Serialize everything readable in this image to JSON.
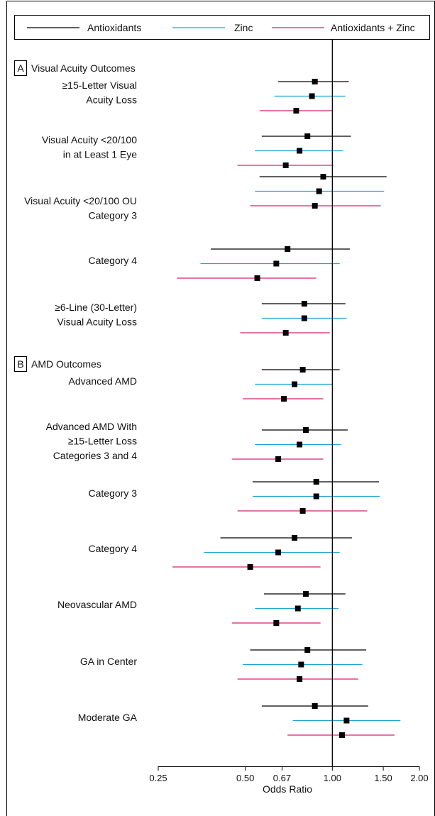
{
  "chart_data": {
    "type": "forest",
    "xlabel": "Odds Ratio",
    "xscale": "log",
    "xlim": [
      0.25,
      2.0
    ],
    "reference_line": 1.0,
    "ticks": [
      {
        "value": 0.25,
        "label": "0.25"
      },
      {
        "value": 0.5,
        "label": "0.50"
      },
      {
        "value": 0.67,
        "label": "0.67"
      },
      {
        "value": 1.0,
        "label": "1.00"
      },
      {
        "value": 1.5,
        "label": "1.50"
      },
      {
        "value": 2.0,
        "label": "2.00"
      }
    ],
    "legend": {
      "placement": "top",
      "items": [
        {
          "name": "Antioxidants",
          "color": "#000000"
        },
        {
          "name": "Zinc",
          "color": "#1fa3d6"
        },
        {
          "name": "Antioxidants + Zinc",
          "color": "#d6226e"
        }
      ]
    },
    "sections": [
      {
        "letter": "A",
        "title": "Visual Acuity Outcomes",
        "outcomes": [
          {
            "label": [
              "≥15-Letter Visual",
              "Acuity Loss"
            ],
            "series": [
              {
                "or": 0.87,
                "lo": 0.65,
                "hi": 1.14
              },
              {
                "or": 0.85,
                "lo": 0.63,
                "hi": 1.11
              },
              {
                "or": 0.75,
                "lo": 0.56,
                "hi": 1.0
              }
            ]
          },
          {
            "label": [
              "Visual Acuity <20/100",
              "in at Least 1 Eye"
            ],
            "series": [
              {
                "or": 0.82,
                "lo": 0.57,
                "hi": 1.16
              },
              {
                "or": 0.77,
                "lo": 0.54,
                "hi": 1.09
              },
              {
                "or": 0.69,
                "lo": 0.47,
                "hi": 1.01
              }
            ]
          },
          {
            "label": [
              "Visual Acuity <20/100 OU",
              "Category 3"
            ],
            "series": [
              {
                "or": 0.93,
                "lo": 0.56,
                "hi": 1.54
              },
              {
                "or": 0.9,
                "lo": 0.54,
                "hi": 1.51
              },
              {
                "or": 0.87,
                "lo": 0.52,
                "hi": 1.47
              }
            ]
          },
          {
            "label": [
              "Category 4"
            ],
            "series": [
              {
                "or": 0.7,
                "lo": 0.38,
                "hi": 1.15
              },
              {
                "or": 0.64,
                "lo": 0.35,
                "hi": 1.06
              },
              {
                "or": 0.55,
                "lo": 0.29,
                "hi": 0.88
              }
            ]
          },
          {
            "label": [
              "≥6-Line (30-Letter)",
              "Visual Acuity Loss"
            ],
            "series": [
              {
                "or": 0.8,
                "lo": 0.57,
                "hi": 1.11
              },
              {
                "or": 0.8,
                "lo": 0.57,
                "hi": 1.12
              },
              {
                "or": 0.69,
                "lo": 0.48,
                "hi": 0.98
              }
            ]
          }
        ]
      },
      {
        "letter": "B",
        "title": "AMD Outcomes",
        "outcomes": [
          {
            "label": [
              "Advanced AMD"
            ],
            "series": [
              {
                "or": 0.79,
                "lo": 0.57,
                "hi": 1.06
              },
              {
                "or": 0.74,
                "lo": 0.54,
                "hi": 1.0
              },
              {
                "or": 0.68,
                "lo": 0.49,
                "hi": 0.93
              }
            ]
          },
          {
            "label": [
              "Advanced AMD With",
              "≥15-Letter Loss",
              "Categories 3 and 4"
            ],
            "series": [
              {
                "or": 0.81,
                "lo": 0.57,
                "hi": 1.13
              },
              {
                "or": 0.77,
                "lo": 0.54,
                "hi": 1.07
              },
              {
                "or": 0.65,
                "lo": 0.45,
                "hi": 0.93
              }
            ]
          },
          {
            "label": [
              "Category 3"
            ],
            "series": [
              {
                "or": 0.88,
                "lo": 0.53,
                "hi": 1.45
              },
              {
                "or": 0.88,
                "lo": 0.53,
                "hi": 1.46
              },
              {
                "or": 0.79,
                "lo": 0.47,
                "hi": 1.32
              }
            ]
          },
          {
            "label": [
              "Category 4"
            ],
            "series": [
              {
                "or": 0.74,
                "lo": 0.41,
                "hi": 1.17
              },
              {
                "or": 0.65,
                "lo": 0.36,
                "hi": 1.06
              },
              {
                "or": 0.52,
                "lo": 0.28,
                "hi": 0.91
              }
            ]
          },
          {
            "label": [
              "Neovascular AMD"
            ],
            "series": [
              {
                "or": 0.81,
                "lo": 0.58,
                "hi": 1.11
              },
              {
                "or": 0.76,
                "lo": 0.54,
                "hi": 1.05
              },
              {
                "or": 0.64,
                "lo": 0.45,
                "hi": 0.91
              }
            ]
          },
          {
            "label": [
              "GA in Center"
            ],
            "series": [
              {
                "or": 0.82,
                "lo": 0.52,
                "hi": 1.31
              },
              {
                "or": 0.78,
                "lo": 0.49,
                "hi": 1.27
              },
              {
                "or": 0.77,
                "lo": 0.47,
                "hi": 1.23
              }
            ]
          },
          {
            "label": [
              "Moderate GA"
            ],
            "series": [
              {
                "or": 0.87,
                "lo": 0.57,
                "hi": 1.33
              },
              {
                "or": 1.12,
                "lo": 0.73,
                "hi": 1.72
              },
              {
                "or": 1.08,
                "lo": 0.7,
                "hi": 1.64
              }
            ]
          }
        ]
      }
    ]
  }
}
